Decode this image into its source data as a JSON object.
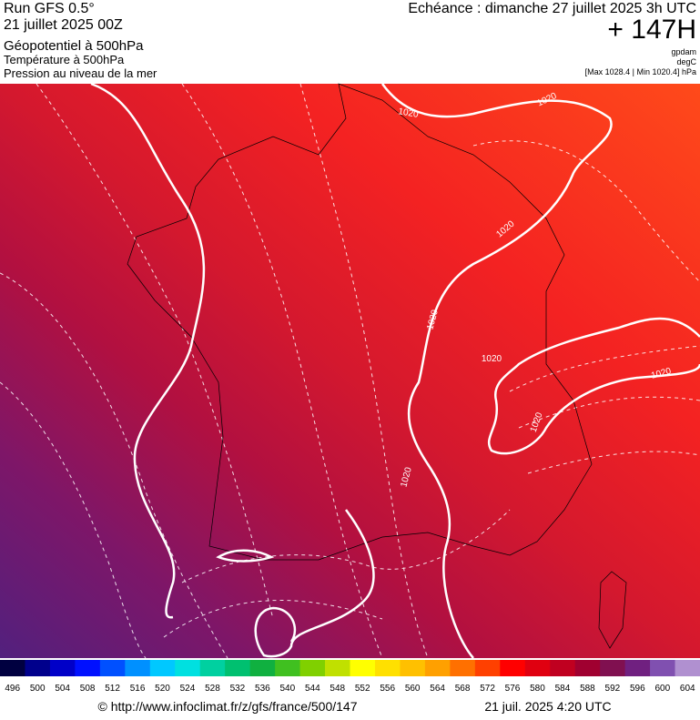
{
  "header": {
    "run": "Run GFS 0.5°",
    "date": "21 juillet 2025 00Z",
    "field1": "Géopotentiel à 500hPa",
    "field2": "Température à 500hPa",
    "field3": "Pression au niveau de la mer",
    "echeance": "Echéance : dimanche 27 juillet 2025 3h UTC",
    "lead": "+ 147H",
    "unit1": "gpdam",
    "unit2": "degC",
    "range": "[Max 1028.4 | Min 1020.4] hPa"
  },
  "map": {
    "contour_labels": [
      "1020",
      "1020",
      "1020",
      "1020",
      "1020",
      "1020",
      "1020",
      "1020"
    ]
  },
  "colorbar": {
    "labels": [
      496,
      500,
      504,
      508,
      512,
      516,
      520,
      524,
      528,
      532,
      536,
      540,
      544,
      548,
      552,
      556,
      560,
      564,
      568,
      572,
      576,
      580,
      584,
      588,
      592,
      596,
      600,
      604
    ],
    "colors": [
      "#000040",
      "#00008c",
      "#0000c8",
      "#0010ff",
      "#0050ff",
      "#0090ff",
      "#00c8ff",
      "#00e0e0",
      "#00d0a0",
      "#00c070",
      "#10b040",
      "#40c020",
      "#80d000",
      "#c0e000",
      "#ffff00",
      "#ffe000",
      "#ffc000",
      "#ffa000",
      "#ff7000",
      "#ff4000",
      "#ff0000",
      "#e00010",
      "#c00020",
      "#a00030",
      "#801050",
      "#702080",
      "#8050b0",
      "#b090d0"
    ]
  },
  "footer": {
    "url": "© http://www.infoclimat.fr/z/gfs/france/500/147",
    "stamp": "21 juil. 2025  4:20 UTC"
  }
}
